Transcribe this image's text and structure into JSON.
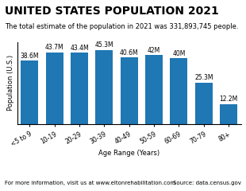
{
  "chart_data": {
    "type": "bar",
    "title": "UNITED STATES POPULATION 2021",
    "subtitle": "The total estimate of the population in 2021 was 331,893,745 people.",
    "categories": [
      "<5 to 9",
      "10-19",
      "20-29",
      "30-39",
      "40-49",
      "50-59",
      "60-69",
      "70-79",
      "80+"
    ],
    "values": [
      38.6,
      43.7,
      43.4,
      45.3,
      40.6,
      42,
      40,
      25.3,
      12.2
    ],
    "value_labels": [
      "38.6M",
      "43.7M",
      "43.4M",
      "45.3M",
      "40.6M",
      "42M",
      "40M",
      "25.3M",
      "12.2M"
    ],
    "data_labels": true,
    "xlabel": "Age Range (Years)",
    "ylabel": "Population (U.S.)",
    "ylim": [
      0,
      50
    ],
    "tick_labels": "x",
    "grid": false,
    "annotations": [
      "For more information, visit us at www.eltonrehabilitation.com",
      "Source: data.census.gov"
    ]
  }
}
